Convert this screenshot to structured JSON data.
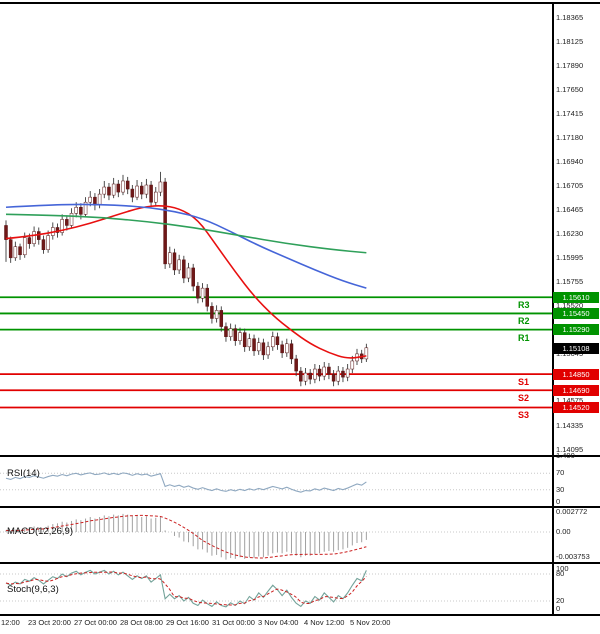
{
  "colors": {
    "level_green": "#009300",
    "level_red": "#e10000",
    "current_black": "#000000",
    "ma_red": "#e81010",
    "ma_blue": "#4565d8",
    "ma_green": "#2fa05a",
    "rsi_line": "#8fa8c0",
    "macd_bar": "#a0a0a0",
    "signal_red": "#cc2222",
    "stoch_k": "#74a39a",
    "wick": "#3a3a3a",
    "bear_body": "#6f1818",
    "bull_body": "#ffffff",
    "body_stroke": "#571212",
    "dotted_level": "#c8c8c8",
    "axis_text": "#222222"
  },
  "chart_data": {
    "type": "candlestick",
    "title": "",
    "price_range": {
      "top": 1.1853,
      "bottom": 1.1404
    },
    "price_axis_labels": [
      "1.18365",
      "1.18125",
      "1.17890",
      "1.17650",
      "1.17415",
      "1.17180",
      "1.16940",
      "1.16705",
      "1.16465",
      "1.16230",
      "1.15995",
      "1.15755",
      "1.15520",
      "1.15290",
      "1.15045",
      "1.14810",
      "1.14575",
      "1.14335",
      "1.14095"
    ],
    "price_axis_extra_label": "1.400",
    "candles": [
      [
        1.1632,
        1.1637,
        1.1596,
        1.1618
      ],
      [
        1.1618,
        1.1621,
        1.1595,
        1.16
      ],
      [
        1.16,
        1.1616,
        1.1597,
        1.1611
      ],
      [
        1.1611,
        1.1614,
        1.1598,
        1.1603
      ],
      [
        1.1603,
        1.1625,
        1.16,
        1.162
      ],
      [
        1.162,
        1.1624,
        1.1609,
        1.1614
      ],
      [
        1.1614,
        1.1631,
        1.1611,
        1.1626
      ],
      [
        1.1626,
        1.163,
        1.1613,
        1.1618
      ],
      [
        1.1618,
        1.1622,
        1.1604,
        1.1608
      ],
      [
        1.1608,
        1.1627,
        1.1605,
        1.1622
      ],
      [
        1.1622,
        1.1635,
        1.1618,
        1.163
      ],
      [
        1.163,
        1.1634,
        1.162,
        1.1625
      ],
      [
        1.1625,
        1.1643,
        1.1622,
        1.1638
      ],
      [
        1.1638,
        1.1642,
        1.1627,
        1.1632
      ],
      [
        1.1632,
        1.1649,
        1.1629,
        1.1644
      ],
      [
        1.1644,
        1.1655,
        1.164,
        1.165
      ],
      [
        1.165,
        1.1654,
        1.1638,
        1.1643
      ],
      [
        1.1643,
        1.166,
        1.164,
        1.1655
      ],
      [
        1.1655,
        1.1666,
        1.1651,
        1.166
      ],
      [
        1.166,
        1.1664,
        1.1647,
        1.1652
      ],
      [
        1.1652,
        1.1668,
        1.1649,
        1.1663
      ],
      [
        1.1663,
        1.1676,
        1.1659,
        1.167
      ],
      [
        1.167,
        1.1674,
        1.1657,
        1.1662
      ],
      [
        1.1662,
        1.1679,
        1.1659,
        1.1673
      ],
      [
        1.1673,
        1.1677,
        1.166,
        1.1665
      ],
      [
        1.1665,
        1.1682,
        1.1662,
        1.1676
      ],
      [
        1.1676,
        1.168,
        1.1663,
        1.1668
      ],
      [
        1.1668,
        1.1672,
        1.1655,
        1.166
      ],
      [
        1.166,
        1.1677,
        1.1657,
        1.1671
      ],
      [
        1.1671,
        1.1675,
        1.1658,
        1.1663
      ],
      [
        1.1663,
        1.1678,
        1.1659,
        1.1672
      ],
      [
        1.1672,
        1.1676,
        1.165,
        1.1655
      ],
      [
        1.1655,
        1.167,
        1.1651,
        1.1665
      ],
      [
        1.1665,
        1.1685,
        1.1661,
        1.1675
      ],
      [
        1.1675,
        1.1679,
        1.1589,
        1.1594
      ],
      [
        1.1594,
        1.1611,
        1.159,
        1.1605
      ],
      [
        1.1605,
        1.1609,
        1.1583,
        1.1588
      ],
      [
        1.1588,
        1.1603,
        1.1584,
        1.1598
      ],
      [
        1.1598,
        1.1602,
        1.1575,
        1.158
      ],
      [
        1.158,
        1.1595,
        1.1576,
        1.159
      ],
      [
        1.159,
        1.1594,
        1.1567,
        1.1572
      ],
      [
        1.1572,
        1.1576,
        1.1555,
        1.156
      ],
      [
        1.156,
        1.1575,
        1.1556,
        1.157
      ],
      [
        1.157,
        1.1574,
        1.1547,
        1.1552
      ],
      [
        1.1552,
        1.1556,
        1.1535,
        1.154
      ],
      [
        1.154,
        1.1553,
        1.1536,
        1.1548
      ],
      [
        1.1548,
        1.1552,
        1.1527,
        1.1532
      ],
      [
        1.1532,
        1.1536,
        1.1517,
        1.1522
      ],
      [
        1.1522,
        1.1535,
        1.1518,
        1.153
      ],
      [
        1.153,
        1.1534,
        1.1513,
        1.1518
      ],
      [
        1.1518,
        1.1531,
        1.1514,
        1.1526
      ],
      [
        1.1526,
        1.153,
        1.1507,
        1.1512
      ],
      [
        1.1512,
        1.1525,
        1.1508,
        1.152
      ],
      [
        1.152,
        1.1524,
        1.1503,
        1.1508
      ],
      [
        1.1508,
        1.1521,
        1.1504,
        1.1516
      ],
      [
        1.1516,
        1.152,
        1.1499,
        1.1504
      ],
      [
        1.1504,
        1.1517,
        1.15,
        1.1512
      ],
      [
        1.1512,
        1.1527,
        1.1508,
        1.1522
      ],
      [
        1.1522,
        1.1526,
        1.1509,
        1.1514
      ],
      [
        1.1514,
        1.1518,
        1.1501,
        1.1506
      ],
      [
        1.1506,
        1.152,
        1.1502,
        1.1515
      ],
      [
        1.1515,
        1.1519,
        1.1495,
        1.15
      ],
      [
        1.15,
        1.1504,
        1.1483,
        1.1488
      ],
      [
        1.1488,
        1.1492,
        1.1473,
        1.1478
      ],
      [
        1.1478,
        1.1491,
        1.1474,
        1.1486
      ],
      [
        1.1486,
        1.149,
        1.1475,
        1.148
      ],
      [
        1.148,
        1.1495,
        1.1476,
        1.149
      ],
      [
        1.149,
        1.1494,
        1.1478,
        1.1483
      ],
      [
        1.1483,
        1.1497,
        1.1479,
        1.1492
      ],
      [
        1.1492,
        1.1496,
        1.148,
        1.1485
      ],
      [
        1.1485,
        1.1489,
        1.1473,
        1.1478
      ],
      [
        1.1478,
        1.1493,
        1.1474,
        1.1488
      ],
      [
        1.1488,
        1.1492,
        1.1477,
        1.1482
      ],
      [
        1.1482,
        1.1495,
        1.1478,
        1.149
      ],
      [
        1.149,
        1.1503,
        1.1486,
        1.1498
      ],
      [
        1.1498,
        1.151,
        1.1494,
        1.1505
      ],
      [
        1.1505,
        1.1509,
        1.1496,
        1.15
      ],
      [
        1.15,
        1.1515,
        1.1497,
        1.1511
      ]
    ],
    "moving_averages": [
      {
        "name": "ma-red",
        "color_key": "ma_red",
        "points": [
          [
            0,
            1.1619
          ],
          [
            6,
            1.1622
          ],
          [
            12,
            1.1627
          ],
          [
            18,
            1.1634
          ],
          [
            24,
            1.1643
          ],
          [
            29,
            1.165
          ],
          [
            33,
            1.1652
          ],
          [
            37,
            1.1649
          ],
          [
            41,
            1.1638
          ],
          [
            45,
            1.1612
          ],
          [
            49,
            1.1586
          ],
          [
            53,
            1.1562
          ],
          [
            57,
            1.1543
          ],
          [
            61,
            1.1528
          ],
          [
            65,
            1.1515
          ],
          [
            69,
            1.1506
          ],
          [
            73,
            1.15
          ],
          [
            77,
            1.1503
          ]
        ]
      },
      {
        "name": "ma-blue",
        "color_key": "ma_blue",
        "points": [
          [
            0,
            1.165
          ],
          [
            8,
            1.1652
          ],
          [
            16,
            1.1653
          ],
          [
            24,
            1.1652
          ],
          [
            30,
            1.165
          ],
          [
            36,
            1.1646
          ],
          [
            42,
            1.1639
          ],
          [
            48,
            1.1626
          ],
          [
            54,
            1.1612
          ],
          [
            60,
            1.16
          ],
          [
            66,
            1.1588
          ],
          [
            72,
            1.1577
          ],
          [
            77,
            1.157
          ]
        ]
      },
      {
        "name": "ma-green",
        "color_key": "ma_green",
        "points": [
          [
            0,
            1.1643
          ],
          [
            10,
            1.1642
          ],
          [
            20,
            1.164
          ],
          [
            30,
            1.1636
          ],
          [
            40,
            1.163
          ],
          [
            50,
            1.1622
          ],
          [
            60,
            1.1614
          ],
          [
            70,
            1.1608
          ],
          [
            77,
            1.1605
          ]
        ]
      }
    ],
    "levels": [
      {
        "label": "R3",
        "price": 1.1561,
        "text": "1.15610",
        "kind": "resistance"
      },
      {
        "label": "R2",
        "price": 1.1545,
        "text": "1.15450",
        "kind": "resistance"
      },
      {
        "label": "R1",
        "price": 1.1529,
        "text": "1.15290",
        "kind": "resistance"
      },
      {
        "label": "",
        "price": 1.15108,
        "text": "1.15108",
        "kind": "current"
      },
      {
        "label": "S1",
        "price": 1.1485,
        "text": "1.14850",
        "kind": "support"
      },
      {
        "label": "S2",
        "price": 1.1469,
        "text": "1.14690",
        "kind": "support"
      },
      {
        "label": "S3",
        "price": 1.1452,
        "text": "1.14520",
        "kind": "support"
      }
    ],
    "indicators": {
      "rsi": {
        "label": "RSI(14)",
        "axis_labels": [
          "70",
          "30",
          "0"
        ],
        "levels": [
          70,
          30
        ],
        "values": [
          58,
          55,
          60,
          57,
          62,
          60,
          64,
          61,
          58,
          62,
          65,
          63,
          67,
          64,
          68,
          70,
          66,
          69,
          71,
          67,
          68,
          71,
          67,
          70,
          67,
          71,
          69,
          65,
          69,
          66,
          68,
          63,
          66,
          69,
          38,
          42,
          38,
          41,
          36,
          39,
          34,
          31,
          35,
          31,
          28,
          32,
          28,
          26,
          30,
          27,
          31,
          28,
          32,
          29,
          33,
          30,
          34,
          38,
          35,
          32,
          36,
          31,
          27,
          24,
          28,
          27,
          32,
          29,
          34,
          31,
          28,
          33,
          30,
          34,
          39,
          44,
          41,
          49
        ]
      },
      "macd": {
        "label": "MACD(12,26,9)",
        "axis_labels": [
          "0.002772",
          "0.00",
          "-0.003753"
        ],
        "signal_period": 9,
        "values": [
          0.0002,
          0.0001,
          0.0003,
          0.0002,
          0.0004,
          0.0005,
          0.0007,
          0.0006,
          0.0005,
          0.0008,
          0.001,
          0.0011,
          0.0013,
          0.0012,
          0.0014,
          0.0016,
          0.0015,
          0.0017,
          0.0019,
          0.0017,
          0.0019,
          0.0021,
          0.002,
          0.0022,
          0.0021,
          0.0023,
          0.0022,
          0.002,
          0.0021,
          0.0019,
          0.002,
          0.0017,
          0.0018,
          0.0019,
          0.0002,
          0.0,
          -0.0005,
          -0.0007,
          -0.0012,
          -0.0013,
          -0.0018,
          -0.0022,
          -0.0022,
          -0.0026,
          -0.003,
          -0.0029,
          -0.0032,
          -0.0035,
          -0.0033,
          -0.0034,
          -0.0032,
          -0.0034,
          -0.0032,
          -0.0033,
          -0.0031,
          -0.0032,
          -0.003,
          -0.0027,
          -0.0026,
          -0.0027,
          -0.0025,
          -0.0027,
          -0.003,
          -0.0032,
          -0.003,
          -0.003,
          -0.0028,
          -0.0027,
          -0.0025,
          -0.0024,
          -0.0025,
          -0.0023,
          -0.0022,
          -0.002,
          -0.0017,
          -0.0014,
          -0.0013,
          -0.001
        ]
      },
      "stoch": {
        "label": "Stoch(9,6,3)",
        "axis_labels": [
          "100",
          "80",
          "20",
          "0"
        ],
        "levels": [
          80,
          20
        ],
        "signal_period": 3,
        "values": [
          60,
          55,
          62,
          58,
          68,
          64,
          72,
          66,
          58,
          66,
          74,
          70,
          80,
          74,
          82,
          86,
          78,
          84,
          88,
          80,
          84,
          88,
          80,
          86,
          78,
          84,
          76,
          68,
          76,
          70,
          76,
          62,
          70,
          78,
          25,
          35,
          25,
          32,
          20,
          28,
          15,
          10,
          22,
          14,
          8,
          18,
          10,
          7,
          16,
          10,
          20,
          14,
          30,
          22,
          38,
          28,
          42,
          55,
          45,
          32,
          44,
          28,
          15,
          8,
          20,
          15,
          30,
          22,
          38,
          28,
          18,
          32,
          25,
          38,
          55,
          70,
          65,
          88
        ]
      }
    },
    "time_axis_labels": [
      "12:00",
      "23 Oct 20:00",
      "27 Oct 00:00",
      "28 Oct 08:00",
      "29 Oct 16:00",
      "31 Oct 00:00",
      "3 Nov 04:00",
      "4 Nov 12:00",
      "5 Nov 20:00"
    ]
  }
}
